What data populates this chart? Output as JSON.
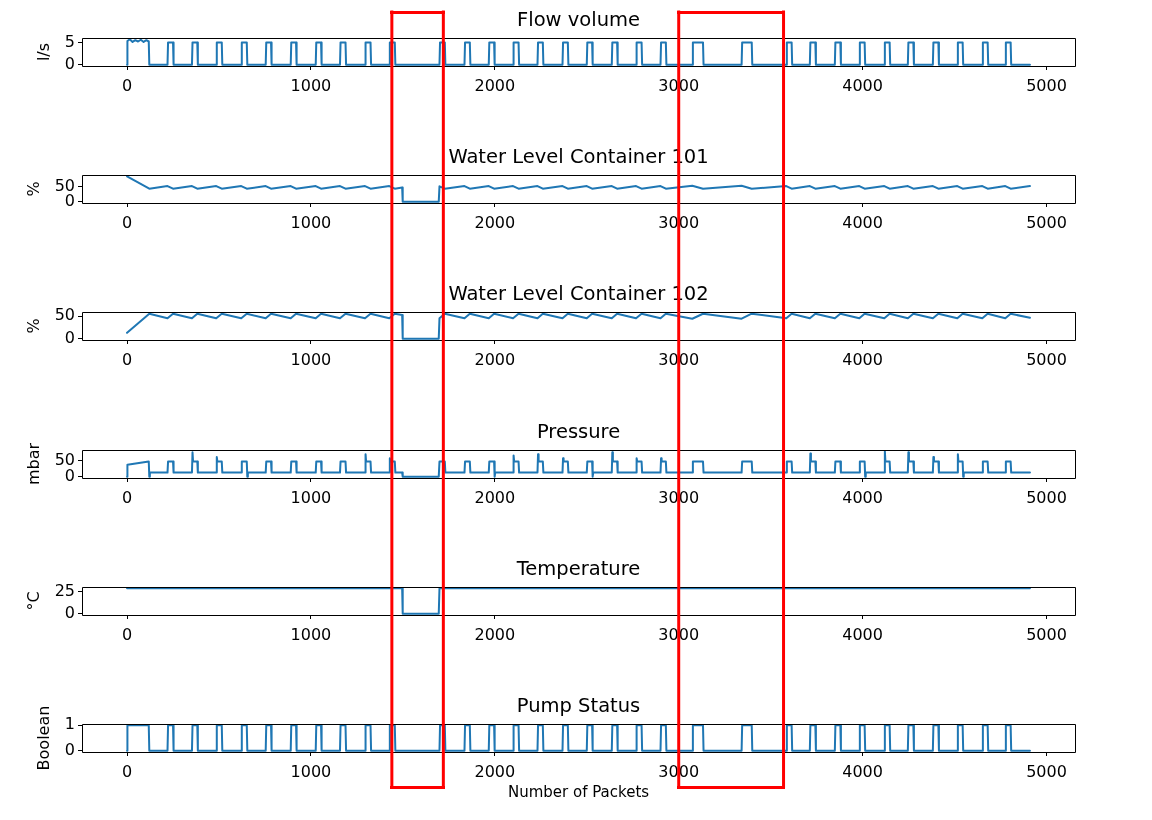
{
  "chart_data": [
    {
      "type": "line",
      "title": "Flow volume",
      "ylabel": "l/s",
      "color": "#1f77b4",
      "xlim": [
        -245,
        5155
      ],
      "xticks": [
        0,
        1000,
        2000,
        3000,
        4000,
        5000
      ],
      "ylim": [
        -0.3,
        6.1
      ],
      "yticks": [
        0,
        5
      ],
      "ref_lines": [
        {
          "axis": "x",
          "value": 1440,
          "color": "#ff0000"
        },
        {
          "axis": "x",
          "value": 1720,
          "color": "#ff0000"
        },
        {
          "axis": "x",
          "value": 3000,
          "color": "#ff0000"
        },
        {
          "axis": "x",
          "value": 3570,
          "color": "#ff0000"
        }
      ],
      "x": [
        0,
        2,
        15,
        30,
        45,
        60,
        75,
        90,
        105,
        118,
        121,
        220,
        223,
        250,
        253,
        353,
        356,
        382,
        385,
        485,
        488,
        515,
        518,
        621,
        624,
        651,
        654,
        754,
        757,
        783,
        786,
        890,
        893,
        919,
        922,
        1026,
        1029,
        1055,
        1058,
        1158,
        1161,
        1188,
        1191,
        1294,
        1297,
        1324,
        1327,
        1426,
        1429,
        1456,
        1459,
        1699,
        1702,
        1728,
        1731,
        1835,
        1838,
        1864,
        1867,
        1967,
        1970,
        1996,
        1999,
        2099,
        2102,
        2129,
        2132,
        2232,
        2235,
        2261,
        2264,
        2368,
        2371,
        2397,
        2400,
        2500,
        2503,
        2529,
        2532,
        2636,
        2639,
        2665,
        2668,
        2768,
        2771,
        2798,
        2801,
        2901,
        2904,
        2930,
        2933,
        3074,
        3077,
        3132,
        3135,
        3342,
        3345,
        3397,
        3400,
        3585,
        3588,
        3614,
        3617,
        3713,
        3716,
        3743,
        3746,
        3849,
        3852,
        3879,
        3882,
        3982,
        3985,
        4011,
        4014,
        4118,
        4121,
        4147,
        4150,
        4246,
        4249,
        4276,
        4279,
        4382,
        4385,
        4412,
        4415,
        4515,
        4518,
        4544,
        4547,
        4651,
        4654,
        4680,
        4683,
        4776,
        4779,
        4805,
        4808,
        4910
      ],
      "values": [
        0,
        5.4,
        5.8,
        5.2,
        5.6,
        5.3,
        5.7,
        5.2,
        5.6,
        5.3,
        0,
        0,
        5.1,
        5.1,
        0,
        0,
        5.1,
        5.1,
        0,
        0,
        5.1,
        5.1,
        0,
        0,
        5.1,
        5.1,
        0,
        0,
        5.1,
        5.1,
        0,
        0,
        5.1,
        5.1,
        0,
        0,
        5.1,
        5.1,
        0,
        0,
        5.1,
        5.1,
        0,
        0,
        5.1,
        5.1,
        0,
        0,
        5.1,
        5.1,
        0,
        0,
        5.1,
        5.1,
        0,
        0,
        5.1,
        5.1,
        0,
        0,
        5.1,
        5.1,
        0,
        0,
        5.1,
        5.1,
        0,
        0,
        5.1,
        5.1,
        0,
        0,
        5.1,
        5.1,
        0,
        0,
        5.1,
        5.1,
        0,
        0,
        5.1,
        5.1,
        0,
        0,
        5.1,
        5.1,
        0,
        0,
        5.1,
        5.1,
        0,
        0,
        5.1,
        5.1,
        0,
        0,
        5.1,
        5.1,
        0,
        0,
        5.1,
        5.1,
        0,
        0,
        5.1,
        5.1,
        0,
        0,
        5.1,
        5.1,
        0,
        0,
        5.1,
        5.1,
        0,
        0,
        5.1,
        5.1,
        0,
        0,
        5.1,
        5.1,
        0,
        0,
        5.1,
        5.1,
        0,
        0,
        5.1,
        5.1,
        0,
        0,
        5.1,
        5.1,
        0,
        0,
        5.1,
        5.1,
        0,
        0
      ]
    },
    {
      "type": "line",
      "title": "Water Level Container 101",
      "ylabel": "%",
      "color": "#1f77b4",
      "xlim": [
        -245,
        5155
      ],
      "xticks": [
        0,
        1000,
        2000,
        3000,
        4000,
        5000
      ],
      "ylim": [
        -4.3,
        90.3
      ],
      "yticks": [
        0,
        50
      ],
      "ref_lines": [
        {
          "axis": "x",
          "value": 1440,
          "color": "#ff0000"
        },
        {
          "axis": "x",
          "value": 1720,
          "color": "#ff0000"
        },
        {
          "axis": "x",
          "value": 3000,
          "color": "#ff0000"
        },
        {
          "axis": "x",
          "value": 3570,
          "color": "#ff0000"
        }
      ],
      "x": [
        0,
        121,
        220,
        250,
        353,
        382,
        485,
        515,
        621,
        651,
        754,
        783,
        890,
        919,
        1026,
        1055,
        1158,
        1188,
        1294,
        1324,
        1426,
        1456,
        1496,
        1499,
        1695,
        1699,
        1728,
        1835,
        1864,
        1967,
        1996,
        2099,
        2129,
        2232,
        2261,
        2368,
        2397,
        2500,
        2529,
        2636,
        2665,
        2768,
        2798,
        2901,
        2930,
        3074,
        3132,
        3342,
        3397,
        3585,
        3614,
        3713,
        3743,
        3849,
        3879,
        3982,
        4011,
        4118,
        4147,
        4246,
        4276,
        4382,
        4412,
        4515,
        4544,
        4651,
        4680,
        4776,
        4805,
        4910
      ],
      "values": [
        86,
        44,
        53,
        44,
        53,
        44,
        53,
        44,
        53,
        44,
        53,
        44,
        53,
        44,
        53,
        44,
        53,
        44,
        53,
        44,
        53,
        44,
        48,
        0,
        0,
        52,
        44,
        53,
        44,
        53,
        44,
        53,
        44,
        53,
        44,
        53,
        44,
        53,
        44,
        53,
        44,
        53,
        44,
        53,
        44,
        54,
        44,
        54,
        44,
        53,
        44,
        53,
        44,
        53,
        44,
        53,
        44,
        53,
        44,
        53,
        44,
        53,
        44,
        53,
        44,
        53,
        44,
        53,
        44,
        53
      ]
    },
    {
      "type": "line",
      "title": "Water Level Container 102",
      "ylabel": "%",
      "color": "#1f77b4",
      "xlim": [
        -245,
        5155
      ],
      "xticks": [
        0,
        1000,
        2000,
        3000,
        4000,
        5000
      ],
      "ylim": [
        -2.8,
        58.8
      ],
      "yticks": [
        0,
        50
      ],
      "ref_lines": [
        {
          "axis": "x",
          "value": 1440,
          "color": "#ff0000"
        },
        {
          "axis": "x",
          "value": 1720,
          "color": "#ff0000"
        },
        {
          "axis": "x",
          "value": 3000,
          "color": "#ff0000"
        },
        {
          "axis": "x",
          "value": 3570,
          "color": "#ff0000"
        }
      ],
      "x": [
        0,
        121,
        220,
        250,
        353,
        382,
        485,
        515,
        621,
        651,
        754,
        783,
        890,
        919,
        1026,
        1055,
        1158,
        1188,
        1294,
        1324,
        1426,
        1456,
        1496,
        1499,
        1695,
        1699,
        1728,
        1835,
        1864,
        1967,
        1996,
        2099,
        2129,
        2232,
        2261,
        2368,
        2397,
        2500,
        2529,
        2636,
        2665,
        2768,
        2798,
        2901,
        2930,
        3074,
        3132,
        3342,
        3397,
        3585,
        3614,
        3713,
        3743,
        3849,
        3879,
        3982,
        4011,
        4118,
        4147,
        4246,
        4276,
        4382,
        4412,
        4515,
        4544,
        4651,
        4680,
        4776,
        4805,
        4910
      ],
      "values": [
        13,
        55,
        45,
        55,
        45,
        55,
        45,
        55,
        45,
        55,
        45,
        55,
        45,
        55,
        45,
        55,
        45,
        55,
        45,
        55,
        45,
        55,
        52,
        0,
        0,
        45,
        55,
        45,
        55,
        45,
        55,
        45,
        55,
        45,
        55,
        45,
        55,
        45,
        55,
        45,
        55,
        45,
        55,
        45,
        55,
        44,
        55,
        44,
        55,
        45,
        55,
        45,
        55,
        45,
        55,
        45,
        55,
        45,
        55,
        45,
        55,
        45,
        55,
        45,
        55,
        45,
        55,
        45,
        55,
        46
      ]
    },
    {
      "type": "line",
      "title": "Pressure",
      "ylabel": "mbar",
      "color": "#1f77b4",
      "xlim": [
        -245,
        5155
      ],
      "xticks": [
        0,
        1000,
        2000,
        3000,
        4000,
        5000
      ],
      "ylim": [
        -4,
        84
      ],
      "yticks": [
        0,
        50
      ],
      "ref_lines": [
        {
          "axis": "x",
          "value": 1440,
          "color": "#ff0000"
        },
        {
          "axis": "x",
          "value": 1720,
          "color": "#ff0000"
        },
        {
          "axis": "x",
          "value": 3000,
          "color": "#ff0000"
        },
        {
          "axis": "x",
          "value": 3570,
          "color": "#ff0000"
        }
      ],
      "x": [
        0,
        2,
        118,
        121,
        124,
        220,
        223,
        250,
        253,
        353,
        356,
        359,
        382,
        385,
        485,
        488,
        491,
        515,
        518,
        621,
        624,
        651,
        654,
        657,
        754,
        757,
        783,
        786,
        890,
        893,
        919,
        922,
        1026,
        1029,
        1055,
        1058,
        1158,
        1161,
        1188,
        1191,
        1294,
        1297,
        1300,
        1324,
        1327,
        1426,
        1429,
        1432,
        1456,
        1459,
        1496,
        1499,
        1695,
        1699,
        1728,
        1731,
        1835,
        1838,
        1864,
        1867,
        1967,
        1970,
        1996,
        1999,
        2002,
        2099,
        2102,
        2105,
        2129,
        2132,
        2232,
        2235,
        2238,
        2261,
        2264,
        2368,
        2371,
        2374,
        2397,
        2400,
        2500,
        2503,
        2529,
        2532,
        2535,
        2636,
        2639,
        2642,
        2665,
        2668,
        2768,
        2771,
        2774,
        2798,
        2801,
        2901,
        2904,
        2907,
        2930,
        2933,
        3074,
        3077,
        3132,
        3135,
        3342,
        3345,
        3397,
        3400,
        3585,
        3588,
        3614,
        3617,
        3713,
        3716,
        3719,
        3743,
        3746,
        3849,
        3852,
        3879,
        3882,
        3982,
        3985,
        4011,
        4014,
        4017,
        4118,
        4121,
        4124,
        4147,
        4150,
        4246,
        4249,
        4252,
        4276,
        4279,
        4382,
        4385,
        4388,
        4412,
        4415,
        4515,
        4518,
        4521,
        4544,
        4547,
        4550,
        4651,
        4654,
        4680,
        4683,
        4776,
        4779,
        4805,
        4808,
        4910
      ],
      "values": [
        0,
        38,
        48,
        0,
        13,
        13,
        48,
        48,
        13,
        13,
        77,
        48,
        48,
        13,
        13,
        62,
        48,
        48,
        13,
        13,
        48,
        48,
        0,
        13,
        13,
        48,
        48,
        13,
        13,
        48,
        48,
        13,
        13,
        48,
        48,
        13,
        13,
        48,
        48,
        13,
        13,
        71,
        48,
        48,
        13,
        13,
        58,
        48,
        48,
        13,
        13,
        0,
        0,
        48,
        48,
        13,
        13,
        48,
        48,
        13,
        13,
        48,
        48,
        0,
        13,
        13,
        67,
        48,
        48,
        13,
        13,
        71,
        48,
        48,
        13,
        13,
        58,
        48,
        48,
        13,
        13,
        48,
        48,
        0,
        13,
        13,
        77,
        48,
        48,
        13,
        13,
        58,
        48,
        48,
        13,
        13,
        58,
        48,
        48,
        13,
        13,
        48,
        48,
        13,
        13,
        48,
        48,
        13,
        13,
        48,
        48,
        13,
        13,
        73,
        48,
        48,
        13,
        13,
        48,
        48,
        13,
        13,
        48,
        48,
        0,
        13,
        13,
        80,
        48,
        48,
        13,
        13,
        77,
        48,
        48,
        13,
        13,
        62,
        48,
        48,
        13,
        13,
        71,
        48,
        48,
        0,
        13,
        13,
        48,
        48,
        13,
        13,
        48,
        48,
        13,
        13
      ]
    },
    {
      "type": "line",
      "title": "Temperature",
      "ylabel": "°C",
      "color": "#1f77b4",
      "xlim": [
        -245,
        5155
      ],
      "xticks": [
        0,
        1000,
        2000,
        3000,
        4000,
        5000
      ],
      "ylim": [
        -1.5,
        30.5
      ],
      "yticks": [
        0,
        25
      ],
      "ref_lines": [
        {
          "axis": "x",
          "value": 1440,
          "color": "#ff0000"
        },
        {
          "axis": "x",
          "value": 1720,
          "color": "#ff0000"
        },
        {
          "axis": "x",
          "value": 3000,
          "color": "#ff0000"
        },
        {
          "axis": "x",
          "value": 3570,
          "color": "#ff0000"
        }
      ],
      "x": [
        0,
        1496,
        1499,
        1695,
        1699,
        4910
      ],
      "values": [
        29,
        29,
        0,
        0,
        29,
        29
      ]
    },
    {
      "type": "line",
      "title": "Pump Status",
      "xlabel": "Number of Packets",
      "ylabel": "Boolean",
      "color": "#1f77b4",
      "xlim": [
        -245,
        5155
      ],
      "xticks": [
        0,
        1000,
        2000,
        3000,
        4000,
        5000
      ],
      "ylim": [
        -0.05,
        1.05
      ],
      "yticks": [
        0,
        1
      ],
      "ref_lines": [
        {
          "axis": "x",
          "value": 1440,
          "color": "#ff0000"
        },
        {
          "axis": "x",
          "value": 1720,
          "color": "#ff0000"
        },
        {
          "axis": "x",
          "value": 3000,
          "color": "#ff0000"
        },
        {
          "axis": "x",
          "value": 3570,
          "color": "#ff0000"
        }
      ],
      "x": [
        0,
        2,
        118,
        121,
        220,
        223,
        250,
        253,
        353,
        356,
        382,
        385,
        485,
        488,
        515,
        518,
        621,
        624,
        651,
        654,
        754,
        757,
        783,
        786,
        890,
        893,
        919,
        922,
        1026,
        1029,
        1055,
        1058,
        1158,
        1161,
        1188,
        1191,
        1294,
        1297,
        1324,
        1327,
        1426,
        1429,
        1456,
        1459,
        1699,
        1702,
        1728,
        1731,
        1835,
        1838,
        1864,
        1867,
        1967,
        1970,
        1996,
        1999,
        2099,
        2102,
        2129,
        2132,
        2232,
        2235,
        2261,
        2264,
        2368,
        2371,
        2397,
        2400,
        2500,
        2503,
        2529,
        2532,
        2636,
        2639,
        2665,
        2668,
        2768,
        2771,
        2798,
        2801,
        2901,
        2904,
        2930,
        2933,
        3074,
        3077,
        3132,
        3135,
        3342,
        3345,
        3397,
        3400,
        3585,
        3588,
        3614,
        3617,
        3713,
        3716,
        3743,
        3746,
        3849,
        3852,
        3879,
        3882,
        3982,
        3985,
        4011,
        4014,
        4118,
        4121,
        4147,
        4150,
        4246,
        4249,
        4276,
        4279,
        4382,
        4385,
        4412,
        4415,
        4515,
        4518,
        4544,
        4547,
        4651,
        4654,
        4680,
        4683,
        4776,
        4779,
        4805,
        4808,
        4910
      ],
      "values": [
        0,
        1,
        1,
        0,
        0,
        1,
        1,
        0,
        0,
        1,
        1,
        0,
        0,
        1,
        1,
        0,
        0,
        1,
        1,
        0,
        0,
        1,
        1,
        0,
        0,
        1,
        1,
        0,
        0,
        1,
        1,
        0,
        0,
        1,
        1,
        0,
        0,
        1,
        1,
        0,
        0,
        1,
        1,
        0,
        0,
        1,
        1,
        0,
        0,
        1,
        1,
        0,
        0,
        1,
        1,
        0,
        0,
        1,
        1,
        0,
        0,
        1,
        1,
        0,
        0,
        1,
        1,
        0,
        0,
        1,
        1,
        0,
        0,
        1,
        1,
        0,
        0,
        1,
        1,
        0,
        0,
        1,
        1,
        0,
        0,
        1,
        1,
        0,
        0,
        1,
        1,
        0,
        0,
        1,
        1,
        0,
        0,
        1,
        1,
        0,
        0,
        1,
        1,
        0,
        0,
        1,
        1,
        0,
        0,
        1,
        1,
        0,
        0,
        1,
        1,
        0,
        0,
        1,
        1,
        0,
        0,
        1,
        1,
        0,
        0,
        1,
        1,
        0,
        0,
        1,
        1,
        0,
        0
      ]
    }
  ]
}
